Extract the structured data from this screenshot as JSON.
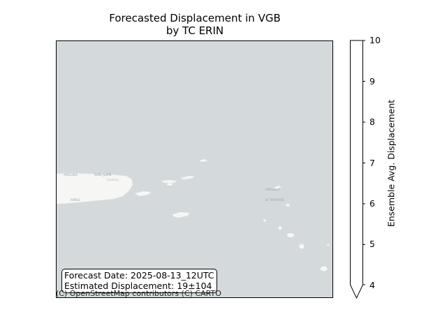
{
  "title": {
    "line1": "Forecasted Displacement in VGB",
    "line2": "by TC ERIN"
  },
  "map": {
    "background_color": "#d4dadc",
    "land_color": "#f6f6f5",
    "place_labels": [
      "ARECIBO",
      "SAN JUAN",
      "Carolina",
      "PONCE",
      "ANGUILLA",
      "ST. MAARTEN"
    ],
    "info_box": {
      "forecast_line": "Forecast Date: 2025-08-13_12UTC",
      "displacement_line": "Estimated Displacement: 19±104"
    },
    "attribution": "(C) OpenStreetMap contributors (C) CARTO"
  },
  "colorbar": {
    "label": "Ensemble Avg. Displacement",
    "min": 4,
    "max": 10,
    "ticks": [
      "4",
      "5",
      "6",
      "7",
      "8",
      "9",
      "10"
    ],
    "extend": "min",
    "fill_color": "#ffffff"
  }
}
